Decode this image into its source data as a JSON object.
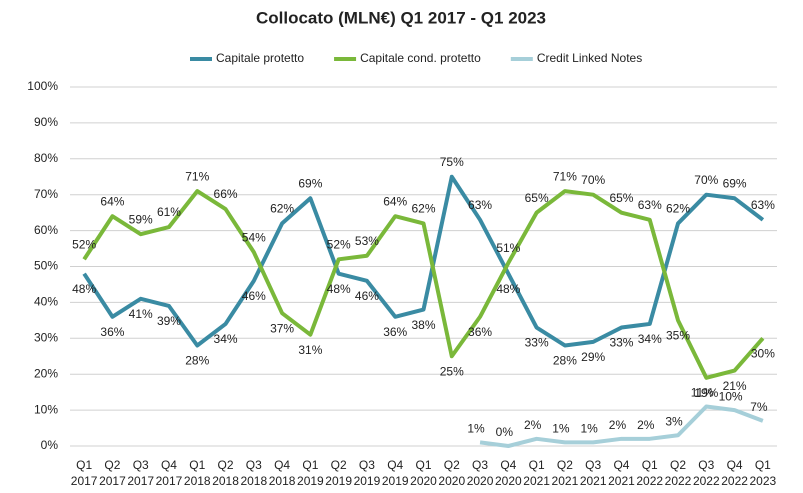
{
  "chart_data": {
    "type": "line",
    "title": "Collocato (MLN€) Q1 2017 - Q1 2023",
    "categories": [
      "Q1 2017",
      "Q2 2017",
      "Q3 2017",
      "Q4 2017",
      "Q1 2018",
      "Q2 2018",
      "Q3 2018",
      "Q4 2018",
      "Q1 2019",
      "Q2 2019",
      "Q3 2019",
      "Q4 2019",
      "Q1 2020",
      "Q2 2020",
      "Q3 2020",
      "Q4 2020",
      "Q1 2021",
      "Q2 2021",
      "Q3 2021",
      "Q4 2021",
      "Q1 2022",
      "Q2 2022",
      "Q3 2022",
      "Q4 2022",
      "Q1 2023"
    ],
    "series": [
      {
        "name": "Capitale protetto",
        "color": "#3a8ba3",
        "values": [
          48,
          36,
          41,
          39,
          28,
          34,
          46,
          62,
          69,
          48,
          46,
          36,
          38,
          75,
          63,
          48,
          33,
          28,
          29,
          33,
          34,
          62,
          70,
          69,
          63
        ],
        "value_labels": [
          "48%",
          "36%",
          "41%",
          "39%",
          "28%",
          "34%",
          "46%",
          "62%",
          "69%",
          "48%",
          "46%",
          "36%",
          "38%",
          "75%",
          "63%",
          "48%",
          "33%",
          "28%",
          "29%",
          "33%",
          "34%",
          "62%",
          "70%",
          "69%",
          "63%"
        ]
      },
      {
        "name": "Capitale cond. protetto",
        "color": "#7ab83a",
        "values": [
          52,
          64,
          59,
          61,
          71,
          66,
          54,
          37,
          31,
          52,
          53,
          64,
          62,
          25,
          36,
          51,
          65,
          71,
          70,
          65,
          63,
          35,
          19,
          21,
          30
        ],
        "value_labels": [
          "52%",
          "64%",
          "59%",
          "61%",
          "71%",
          "66%",
          "54%",
          "37%",
          "31%",
          "52%",
          "53%",
          "64%",
          "62%",
          "25%",
          "36%",
          "51%",
          "65%",
          "71%",
          "70%",
          "65%",
          "63%",
          "35%",
          "19%",
          "21%",
          "30%"
        ]
      },
      {
        "name": "Credit Linked Notes",
        "color": "#a6cfd9",
        "values": [
          null,
          null,
          null,
          null,
          null,
          null,
          null,
          null,
          null,
          null,
          null,
          null,
          null,
          null,
          1,
          0,
          2,
          1,
          1,
          2,
          2,
          3,
          11,
          10,
          7
        ],
        "value_labels": [
          null,
          null,
          null,
          null,
          null,
          null,
          null,
          null,
          null,
          null,
          null,
          null,
          null,
          null,
          "1%",
          "0%",
          "2%",
          "1%",
          "1%",
          "2%",
          "2%",
          "3%",
          "11%",
          "10%",
          "7%"
        ]
      }
    ],
    "ylim": [
      0,
      100
    ],
    "yticks": [
      {
        "value": 0,
        "label": "0%"
      },
      {
        "value": 10,
        "label": "10%"
      },
      {
        "value": 20,
        "label": "20%"
      },
      {
        "value": 30,
        "label": "30%"
      },
      {
        "value": 40,
        "label": "40%"
      },
      {
        "value": 50,
        "label": "50%"
      },
      {
        "value": 60,
        "label": "60%"
      },
      {
        "value": 70,
        "label": "70%"
      },
      {
        "value": 80,
        "label": "80%"
      },
      {
        "value": 90,
        "label": "90%"
      },
      {
        "value": 100,
        "label": "100%"
      }
    ],
    "grid": true,
    "legend": "top"
  }
}
